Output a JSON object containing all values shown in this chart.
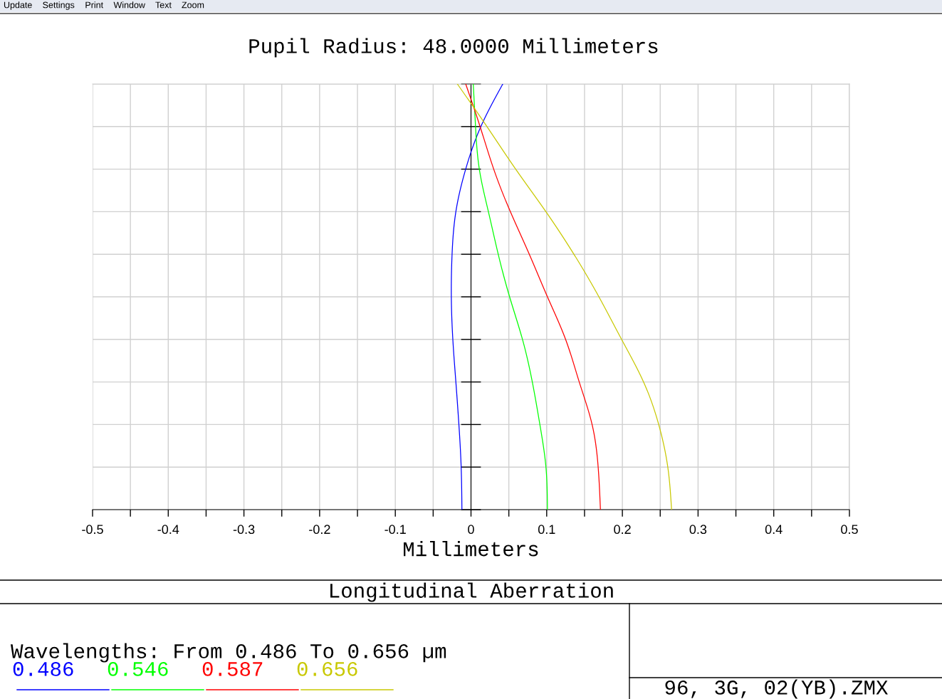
{
  "chart_data": {
    "type": "line",
    "orientation": "horizontal",
    "title": "Pupil Radius: 48.0000 Millimeters",
    "xlabel": "Millimeters",
    "categories": [
      null,
      null,
      null,
      null,
      null,
      null,
      null,
      null,
      null,
      null,
      null
    ],
    "series": [
      {
        "name": "0.486",
        "color": "#0000ff",
        "values": [
          0.042,
          0.013,
          -0.007,
          -0.02,
          -0.025,
          -0.026,
          -0.024,
          -0.02,
          -0.016,
          -0.013,
          -0.012
        ]
      },
      {
        "name": "0.546",
        "color": "#00ff00",
        "values": [
          0.003,
          0.006,
          0.011,
          0.023,
          0.036,
          0.051,
          0.068,
          0.081,
          0.091,
          0.099,
          0.101
        ]
      },
      {
        "name": "0.587",
        "color": "#ff0000",
        "values": [
          -0.007,
          0.012,
          0.03,
          0.052,
          0.077,
          0.101,
          0.125,
          0.143,
          0.16,
          0.168,
          0.171
        ]
      },
      {
        "name": "0.656",
        "color": "#c8c800",
        "values": [
          -0.018,
          0.021,
          0.059,
          0.099,
          0.136,
          0.169,
          0.199,
          0.228,
          0.248,
          0.26,
          0.265
        ]
      }
    ],
    "xlim": [
      -0.5,
      0.5
    ],
    "xticks": [
      -0.5,
      {
        "value": -0.45,
        "label": null
      },
      -0.4,
      {
        "value": -0.35,
        "label": null
      },
      -0.3,
      {
        "value": -0.25,
        "label": null
      },
      -0.2,
      {
        "value": -0.15,
        "label": null
      },
      -0.1,
      {
        "value": -0.05,
        "label": null
      },
      0,
      {
        "value": 0.05,
        "label": null
      },
      0.1,
      {
        "value": 0.15,
        "label": null
      },
      0.2,
      {
        "value": 0.25,
        "label": null
      },
      0.3,
      {
        "value": 0.35,
        "label": null
      },
      0.4,
      {
        "value": 0.45,
        "label": null
      },
      0.5
    ],
    "grid": true,
    "legend": "bottom",
    "line_style": "solid",
    "annotations": [
      "Update Settings Print Window Text Zoom",
      "Longitudinal Aberration",
      "Wavelengths: From 0.486 To 0.656 µm",
      "96, 3G, 02(YB).ZMX"
    ]
  }
}
